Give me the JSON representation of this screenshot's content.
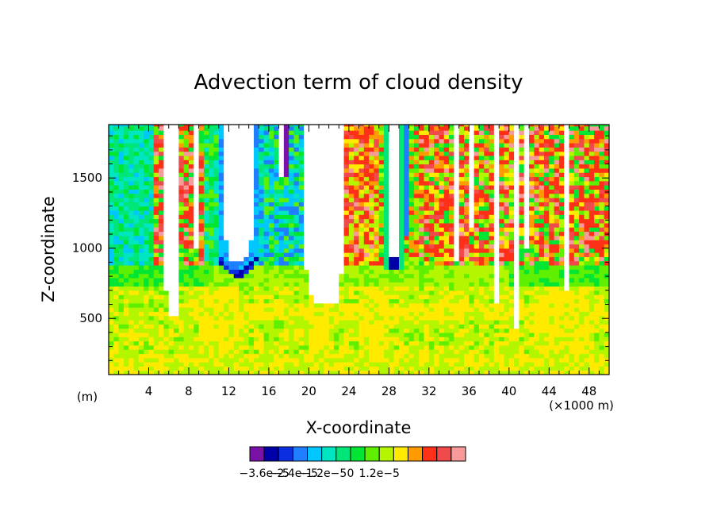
{
  "chart_data": {
    "type": "heatmap",
    "title": "Advection term of cloud density",
    "xlabel": "X-coordinate",
    "ylabel": "Z-coordinate",
    "x_units_note": "(×1000 m)",
    "y_units_note": "(m)",
    "xlim": [
      0,
      50
    ],
    "ylim": [
      100,
      1880
    ],
    "x_ticks": [
      4,
      8,
      12,
      16,
      20,
      24,
      28,
      32,
      36,
      40,
      44,
      48
    ],
    "x_tick_labels": [
      "4",
      "8",
      "12",
      "16",
      "20",
      "24",
      "28",
      "32",
      "36",
      "40",
      "44",
      "48"
    ],
    "y_ticks": [
      500,
      1000,
      1500
    ],
    "y_tick_labels": [
      "500",
      "1000",
      "1500"
    ],
    "colorbar": {
      "levels": [
        -3.6e-05,
        -3e-05,
        -2.4e-05,
        -1.8e-05,
        -1.2e-05,
        -6e-06,
        0,
        6e-06,
        1.2e-05,
        1.8e-05
      ],
      "tick_labels": [
        "−3.6e−5",
        "−2.4e−5",
        "−1.2e−5",
        "0",
        "1.2e−5"
      ],
      "colors": [
        "#7a12a8",
        "#0000a8",
        "#0b2fe0",
        "#1f7fff",
        "#00c8ff",
        "#00e6c2",
        "#00e678",
        "#00e632",
        "#5ef000",
        "#b4f500",
        "#ffea00",
        "#ff9a00",
        "#ff3018",
        "#f04a4a",
        "#f89a9a"
      ]
    },
    "regions_note": "blank (white) areas are where the field is undefined"
  }
}
